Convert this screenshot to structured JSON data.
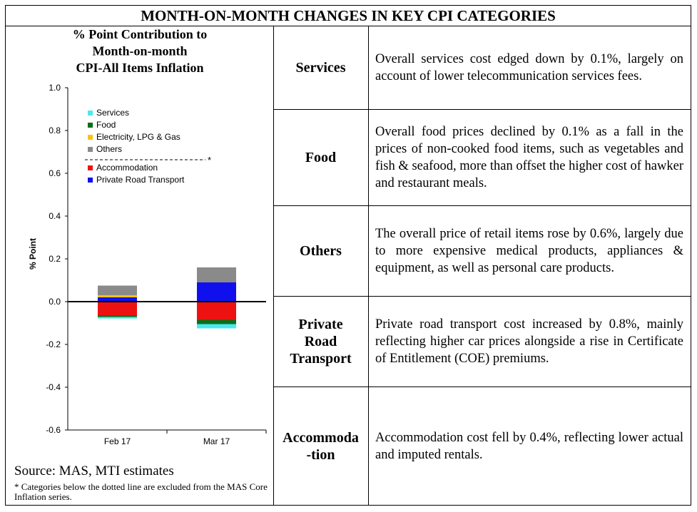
{
  "banner_title": "MONTH-ON-MONTH CHANGES IN KEY CPI CATEGORIES",
  "chart_data": {
    "type": "bar",
    "stacked": true,
    "title_lines": [
      "% Point Contribution to",
      "Month-on-month",
      "CPI-All Items Inflation"
    ],
    "ylabel": "% Point",
    "xlabel": "",
    "categories": [
      "Feb 17",
      "Mar 17"
    ],
    "ylim": [
      -0.6,
      1.0
    ],
    "yticks": [
      "1.0",
      "0.8",
      "0.6",
      "0.4",
      "0.2",
      "0.0",
      "-0.2",
      "-0.4",
      "-0.6"
    ],
    "ytick_values": [
      1.0,
      0.8,
      0.6,
      0.4,
      0.2,
      0.0,
      -0.2,
      -0.4,
      -0.6
    ],
    "series": [
      {
        "name": "Services",
        "color": "#4de8ee",
        "values": [
          -0.007,
          -0.02
        ]
      },
      {
        "name": "Food",
        "color": "#0a6e1a",
        "values": [
          -0.007,
          -0.02
        ]
      },
      {
        "name": "Electricity, LPG & Gas",
        "color": "#f7c21a",
        "values": [
          0.01,
          0.0
        ]
      },
      {
        "name": "Others",
        "color": "#8a8a8a",
        "values": [
          0.045,
          0.07
        ]
      },
      {
        "name": "Accommodation",
        "color": "#ee1111",
        "values": [
          -0.065,
          -0.085
        ]
      },
      {
        "name": "Private Road Transport",
        "color": "#1010ee",
        "values": [
          0.02,
          0.09
        ]
      }
    ],
    "legend": {
      "placement": "top-left",
      "divider_after": "Others",
      "divider_mark": "*"
    },
    "grid": false
  },
  "source": "Source: MAS, MTI estimates",
  "footnote": "* Categories below the dotted line are excluded from the MAS Core Inflation series.",
  "rows": [
    {
      "category": "Services",
      "text": "Overall services cost edged down by 0.1%, largely on account of lower telecommunication services fees."
    },
    {
      "category": "Food",
      "text": "Overall food prices declined by 0.1% as a fall in the prices of non-cooked food items, such as vegetables and fish & seafood, more than offset the higher cost of hawker and restaurant meals."
    },
    {
      "category": "Others",
      "text": "The overall price of retail items rose by 0.6%, largely due to more expensive medical products, appliances & equipment, as well as personal care products."
    },
    {
      "category": "Private\nRoad\nTransport",
      "text": "Private road transport cost increased by 0.8%, mainly reflecting higher car prices alongside a rise in Certificate of Entitlement (COE) premiums."
    },
    {
      "category": "Accommoda\n-tion",
      "text": "Accommodation cost fell by 0.4%, reflecting lower actual and imputed rentals."
    }
  ]
}
